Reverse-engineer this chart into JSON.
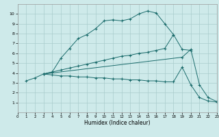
{
  "xlabel": "Humidex (Indice chaleur)",
  "background_color": "#ceeaea",
  "grid_color": "#aacccc",
  "line_color": "#1a6b6b",
  "xlim": [
    0,
    23
  ],
  "ylim": [
    0,
    11
  ],
  "xticks": [
    0,
    1,
    2,
    3,
    4,
    5,
    6,
    7,
    8,
    9,
    10,
    11,
    12,
    13,
    14,
    15,
    16,
    17,
    18,
    19,
    20,
    21,
    22,
    23
  ],
  "yticks": [
    1,
    2,
    3,
    4,
    5,
    6,
    7,
    8,
    9,
    10
  ],
  "line1_x": [
    1,
    2,
    3,
    4,
    5,
    6,
    7,
    8,
    9,
    10,
    11,
    12,
    13,
    14,
    15,
    16,
    17,
    18
  ],
  "line1_y": [
    3.2,
    3.5,
    3.9,
    4.1,
    5.5,
    6.5,
    7.5,
    7.9,
    8.5,
    9.3,
    9.4,
    9.3,
    9.5,
    10.0,
    10.3,
    10.1,
    9.0,
    7.9
  ],
  "line2_x": [
    3,
    4,
    5,
    6,
    7,
    8,
    9,
    10,
    11,
    12,
    13,
    14,
    15,
    16,
    17,
    18,
    19,
    20
  ],
  "line2_y": [
    3.9,
    4.1,
    4.3,
    4.5,
    4.7,
    4.9,
    5.1,
    5.3,
    5.5,
    5.7,
    5.8,
    6.0,
    6.1,
    6.3,
    6.5,
    7.9,
    6.4,
    6.3
  ],
  "line3_x": [
    3,
    4,
    5,
    6,
    7,
    8,
    9,
    10,
    11,
    12,
    13,
    14,
    15,
    16,
    17,
    18,
    19,
    20,
    21,
    22,
    23
  ],
  "line3_y": [
    3.9,
    3.8,
    3.7,
    3.7,
    3.6,
    3.6,
    3.5,
    3.5,
    3.4,
    3.4,
    3.3,
    3.3,
    3.2,
    3.2,
    3.1,
    3.1,
    4.6,
    2.8,
    1.5,
    1.15,
    1.05
  ],
  "line4_x": [
    3,
    19,
    20,
    21,
    22,
    23
  ],
  "line4_y": [
    3.9,
    5.6,
    6.4,
    2.8,
    1.5,
    1.1
  ]
}
